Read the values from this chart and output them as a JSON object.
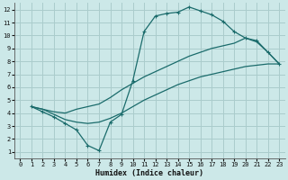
{
  "bg_color": "#cce8e8",
  "grid_color": "#aacccc",
  "line_color": "#1a6b6b",
  "xlabel": "Humidex (Indice chaleur)",
  "xlim": [
    -0.5,
    23.5
  ],
  "ylim": [
    0.5,
    12.5
  ],
  "xticks": [
    0,
    1,
    2,
    3,
    4,
    5,
    6,
    7,
    8,
    9,
    10,
    11,
    12,
    13,
    14,
    15,
    16,
    17,
    18,
    19,
    20,
    21,
    22,
    23
  ],
  "yticks": [
    1,
    2,
    3,
    4,
    5,
    6,
    7,
    8,
    9,
    10,
    11,
    12
  ],
  "curve1_x": [
    1,
    2,
    3,
    4,
    5,
    6,
    7,
    8,
    9,
    10,
    11,
    12,
    13,
    14,
    15,
    16,
    17,
    18,
    19,
    20,
    21,
    22,
    23
  ],
  "curve1_y": [
    4.5,
    4.1,
    3.7,
    3.2,
    2.7,
    1.5,
    1.1,
    3.3,
    3.9,
    6.5,
    10.3,
    11.5,
    11.7,
    11.8,
    12.2,
    11.9,
    11.6,
    11.1,
    10.3,
    9.8,
    9.6,
    8.7,
    7.8
  ],
  "curve2_x": [
    1,
    2,
    3,
    4,
    5,
    6,
    7,
    8,
    9,
    10,
    11,
    12,
    13,
    14,
    15,
    16,
    17,
    18,
    19,
    20,
    21,
    22,
    23
  ],
  "curve2_y": [
    4.5,
    4.3,
    4.1,
    4.0,
    4.3,
    4.5,
    4.7,
    5.2,
    5.8,
    6.3,
    6.8,
    7.2,
    7.6,
    8.0,
    8.4,
    8.7,
    9.0,
    9.2,
    9.4,
    9.8,
    9.5,
    8.7,
    7.8
  ],
  "curve3_x": [
    1,
    2,
    3,
    4,
    5,
    6,
    7,
    8,
    9,
    10,
    11,
    12,
    13,
    14,
    15,
    16,
    17,
    18,
    19,
    20,
    21,
    22,
    23
  ],
  "curve3_y": [
    4.5,
    4.3,
    3.9,
    3.5,
    3.3,
    3.2,
    3.3,
    3.6,
    4.0,
    4.5,
    5.0,
    5.4,
    5.8,
    6.2,
    6.5,
    6.8,
    7.0,
    7.2,
    7.4,
    7.6,
    7.7,
    7.8,
    7.8
  ]
}
